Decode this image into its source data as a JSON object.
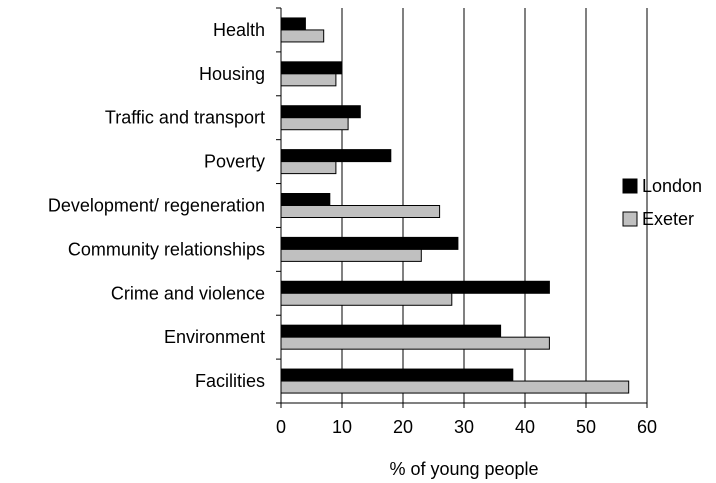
{
  "chart_data": {
    "type": "bar",
    "orientation": "horizontal",
    "categories": [
      "Health",
      "Housing",
      "Traffic and transport",
      "Poverty",
      "Development/ regeneration",
      "Community relationships",
      "Crime and violence",
      "Environment",
      "Facilities"
    ],
    "series": [
      {
        "name": "London",
        "color": "#000000",
        "values": [
          4,
          10,
          13,
          18,
          8,
          29,
          44,
          36,
          38
        ]
      },
      {
        "name": "Exeter",
        "color": "#c0c0c0",
        "values": [
          7,
          9,
          11,
          9,
          26,
          23,
          28,
          44,
          57
        ]
      }
    ],
    "xlabel": "% of young people",
    "ylabel": "",
    "xlim": [
      0,
      60
    ],
    "xticks": [
      0,
      10,
      20,
      30,
      40,
      50,
      60
    ],
    "grid": "vertical",
    "legend": "right"
  }
}
